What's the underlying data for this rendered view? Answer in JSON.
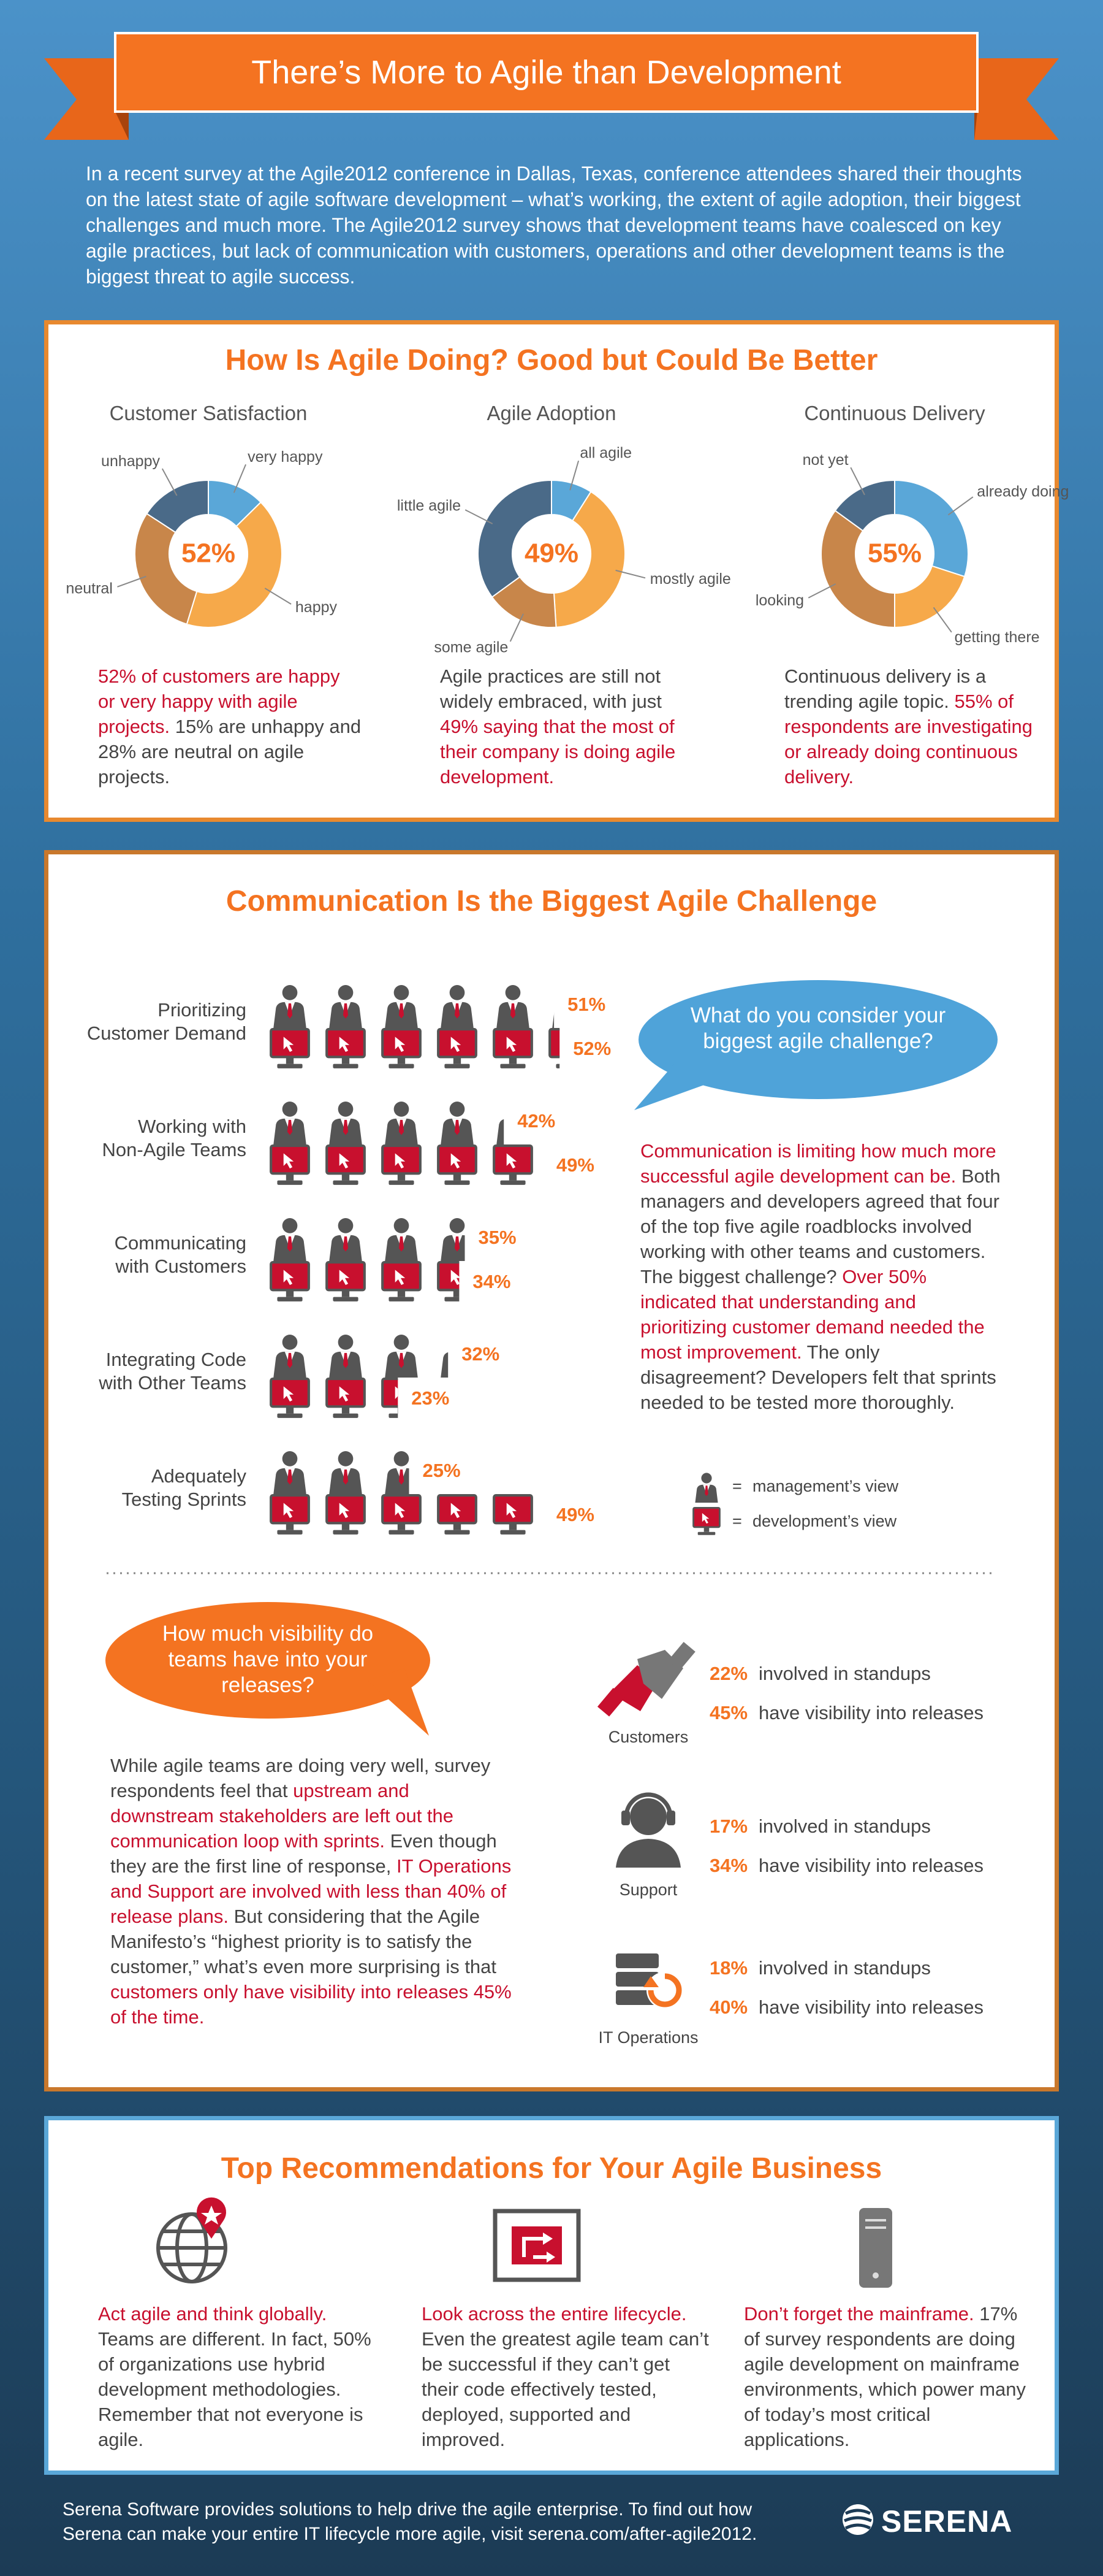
{
  "title": "There’s More to Agile than Development",
  "intro": "In a recent survey at the Agile2012 conference in Dallas, Texas, conference attendees shared their thoughts on the latest state of agile software development – what’s working, the extent of agile adoption, their biggest challenges and much more.  The Agile2012 survey shows that development teams have coalesced on key agile practices, but lack of communication with customers, operations and other development teams is the biggest threat to agile success.",
  "doing": {
    "heading": "How Is Agile Doing? Good but Could Be Better",
    "charts": [
      {
        "type": "pie",
        "title": "Customer Satisfaction",
        "center_label": "52%",
        "categories": [
          "very happy",
          "happy",
          "neutral",
          "unhappy"
        ],
        "values": [
          12,
          40,
          28,
          15
        ],
        "colors": [
          "#5aa7d8",
          "#f6a94a",
          "#c8864a",
          "#4a6a88"
        ],
        "text": [
          {
            "text": "52% of customers are happy or very happy with agile projects.",
            "highlight": true
          },
          {
            "text": "  15% are unhappy and 28% are neutral on agile projects.",
            "highlight": false
          }
        ]
      },
      {
        "type": "pie",
        "title": "Agile Adoption",
        "center_label": "49%",
        "categories": [
          "all agile",
          "mostly agile",
          "some agile",
          "little agile"
        ],
        "values": [
          9,
          40,
          16,
          35
        ],
        "colors": [
          "#5aa7d8",
          "#f6a94a",
          "#c8864a",
          "#4a6a88"
        ],
        "text": [
          {
            "text": "Agile practices are still not widely embraced, with just ",
            "highlight": false
          },
          {
            "text": "49% saying that the most of their company is doing agile development.",
            "highlight": true
          }
        ]
      },
      {
        "type": "pie",
        "title": "Continuous Delivery",
        "center_label": "55%",
        "categories": [
          "already doing",
          "getting there",
          "looking",
          "not yet"
        ],
        "values": [
          30,
          20,
          35,
          15
        ],
        "colors": [
          "#5aa7d8",
          "#f6a94a",
          "#c8864a",
          "#4a6a88"
        ],
        "text": [
          {
            "text": "Continuous delivery is a trending agile topic.  ",
            "highlight": false
          },
          {
            "text": "55% of respondents are investigating or already doing continuous delivery.",
            "highlight": true
          }
        ]
      }
    ]
  },
  "challenge": {
    "heading": "Communication Is the Biggest Agile Challenge",
    "chart": {
      "type": "pictograph",
      "categories": [
        "Prioritizing\nCustomer Demand",
        "Working with\nNon-Agile Teams",
        "Communicating\nwith Customers",
        "Integrating Code\nwith Other Teams",
        "Adequately\nTesting Sprints"
      ],
      "series": [
        {
          "name": "management’s view",
          "color": "#555555",
          "values": [
            51,
            42,
            35,
            32,
            25
          ],
          "value_labels": [
            "51%",
            "42%",
            "35%",
            "32%",
            "25%"
          ]
        },
        {
          "name": "development’s view",
          "color": "#c8102e",
          "values": [
            52,
            49,
            34,
            23,
            49
          ],
          "value_labels": [
            "52%",
            "49%",
            "34%",
            "23%",
            "49%"
          ]
        }
      ],
      "legend_sign": "="
    },
    "question": "What do you consider your biggest agile challenge?",
    "text": [
      {
        "text": "Communication is limiting how much more successful agile development can be.",
        "highlight": true
      },
      {
        "text": "  Both managers and developers agreed that four of the top five agile roadblocks involved working with other teams and customers.  The biggest challenge?  ",
        "highlight": false
      },
      {
        "text": "Over 50% indicated that understanding and prioritizing customer demand needed the most improvement.",
        "highlight": true
      },
      {
        "text": "  The only disagreement? Developers felt that sprints needed to be tested more thoroughly.",
        "highlight": false
      }
    ]
  },
  "visibility": {
    "question": "How much visibility do teams have into your releases?",
    "text": [
      {
        "text": "While agile teams are doing very well, survey respondents feel that ",
        "highlight": false
      },
      {
        "text": "upstream and downstream stakeholders are left out the communication loop with sprints.",
        "highlight": true
      },
      {
        "text": "  Even though they are the first line of response, ",
        "highlight": false
      },
      {
        "text": "IT Operations and Support are involved with less than 40% of release plans.",
        "highlight": true
      },
      {
        "text": "  But considering that the Agile Manifesto’s “highest priority is to satisfy the customer,” what’s even more surprising is that ",
        "highlight": false
      },
      {
        "text": "customers only have visibility into releases 45% of the time.",
        "highlight": true
      }
    ],
    "groups": [
      {
        "name": "Customers",
        "standups": "22%",
        "standups_text": "involved in standups",
        "visibility": "45%",
        "visibility_text": "have visibility into releases"
      },
      {
        "name": "Support",
        "standups": "17%",
        "standups_text": "involved in standups",
        "visibility": "34%",
        "visibility_text": "have visibility into releases"
      },
      {
        "name": "IT Operations",
        "standups": "18%",
        "standups_text": "involved in standups",
        "visibility": "40%",
        "visibility_text": "have visibility into releases"
      }
    ]
  },
  "recommendations": {
    "heading": "Top Recommendations for Your Agile Business",
    "items": [
      [
        {
          "text": "Act agile and think globally.",
          "highlight": true
        },
        {
          "text": "  Teams are different.  In fact, 50% of organizations use hybrid development methodologies. Remember that not everyone is agile.",
          "highlight": false
        }
      ],
      [
        {
          "text": "Look across the entire lifecycle.",
          "highlight": true
        },
        {
          "text": " Even the greatest agile team can’t be successful if they can’t get their code effectively tested, deployed, supported and improved.",
          "highlight": false
        }
      ],
      [
        {
          "text": "Don’t forget the mainframe.",
          "highlight": true
        },
        {
          "text": " 17% of survey respondents are doing agile development on mainframe environments, which power many of today’s most critical applications.",
          "highlight": false
        }
      ]
    ]
  },
  "footer": {
    "text": "Serena Software provides solutions to help drive the agile enterprise. To find out how Serena can make your entire IT lifecycle more agile, visit serena.com/after-agile2012.",
    "logo": "SERENA"
  }
}
